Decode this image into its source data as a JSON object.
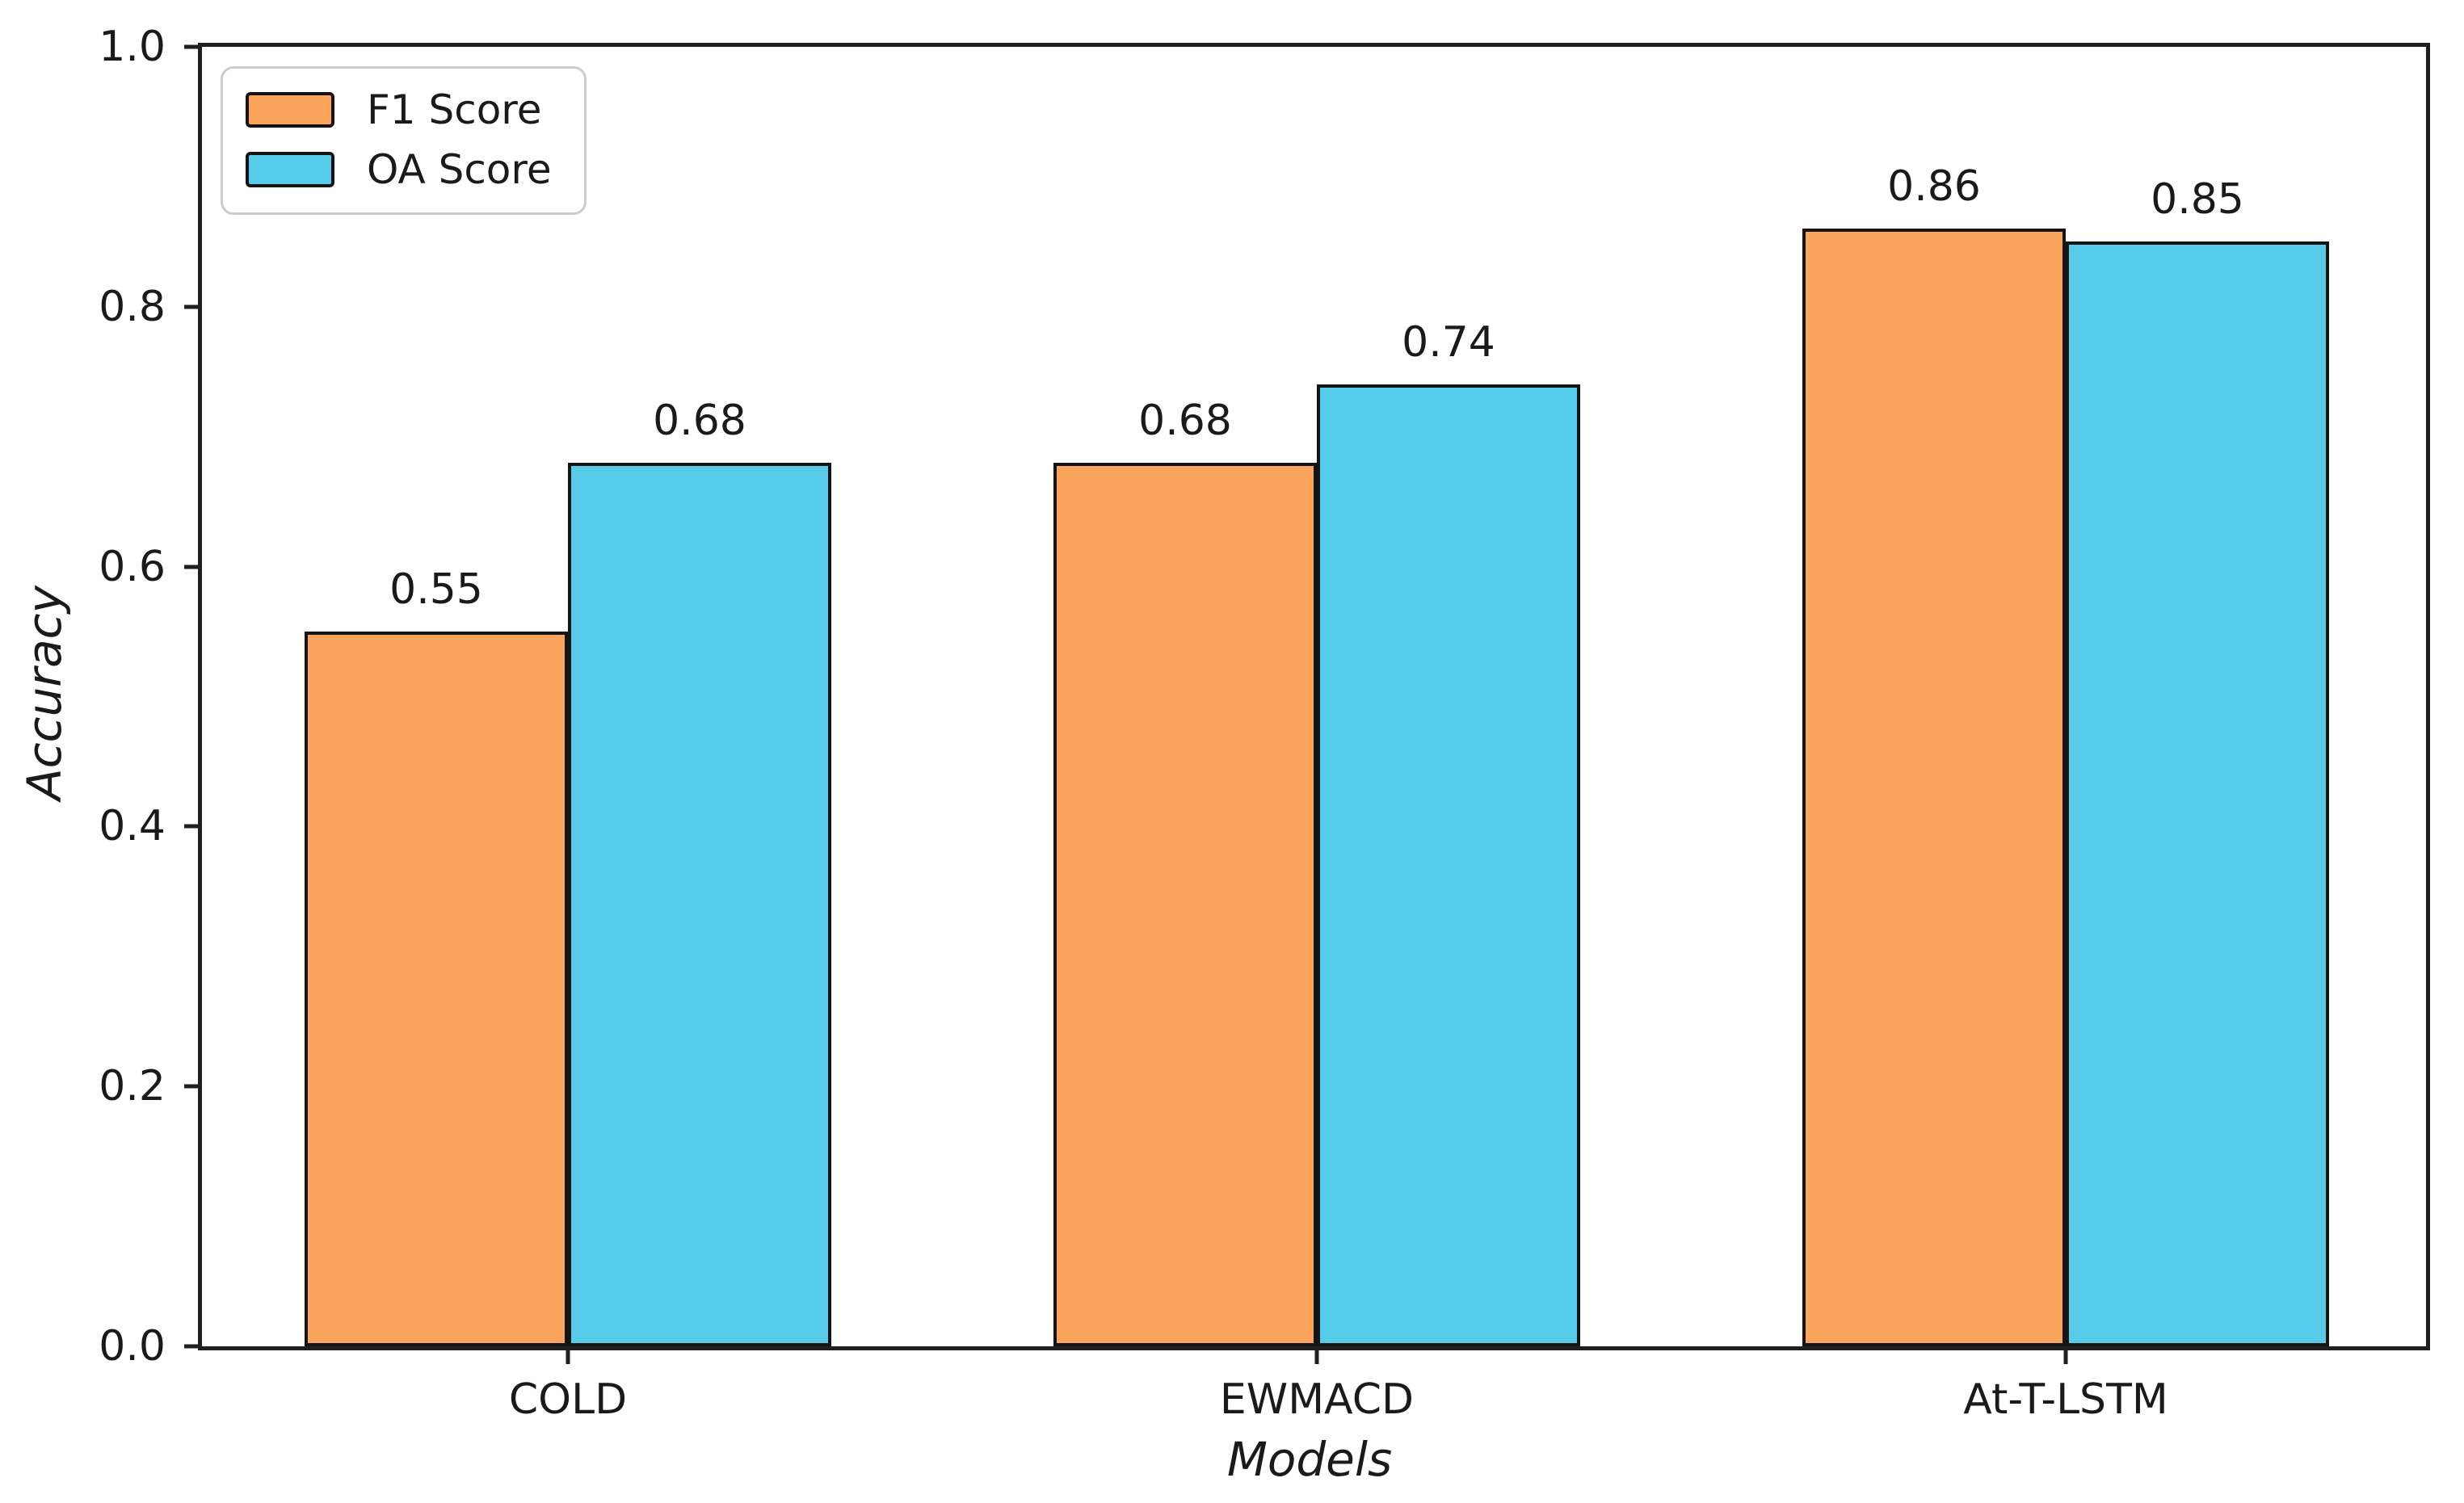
{
  "chart_data": {
    "type": "bar",
    "categories": [
      "COLD",
      "EWMACD",
      "At-T-LSTM"
    ],
    "series": [
      {
        "name": "F1 Score",
        "color": "#FBA55C",
        "values": [
          0.55,
          0.68,
          0.86
        ]
      },
      {
        "name": "OA Score",
        "color": "#57CCEA",
        "values": [
          0.68,
          0.74,
          0.85
        ]
      }
    ],
    "bar_value_labels": [
      [
        "0.55",
        "0.68",
        "0.86"
      ],
      [
        "0.68",
        "0.74",
        "0.85"
      ]
    ],
    "title": "",
    "xlabel": "Models",
    "ylabel": "Accuracy",
    "ylim": [
      0.0,
      1.0
    ],
    "yticks": [
      {
        "value": 0.0,
        "label": "0.0"
      },
      {
        "value": 0.2,
        "label": "0.2"
      },
      {
        "value": 0.4,
        "label": "0.4"
      },
      {
        "value": 0.6,
        "label": "0.6"
      },
      {
        "value": 0.8,
        "label": "0.8"
      },
      {
        "value": 1.0,
        "label": "1.0"
      }
    ],
    "legend_position": "upper left",
    "grid": false,
    "edge_color": "#141414"
  }
}
